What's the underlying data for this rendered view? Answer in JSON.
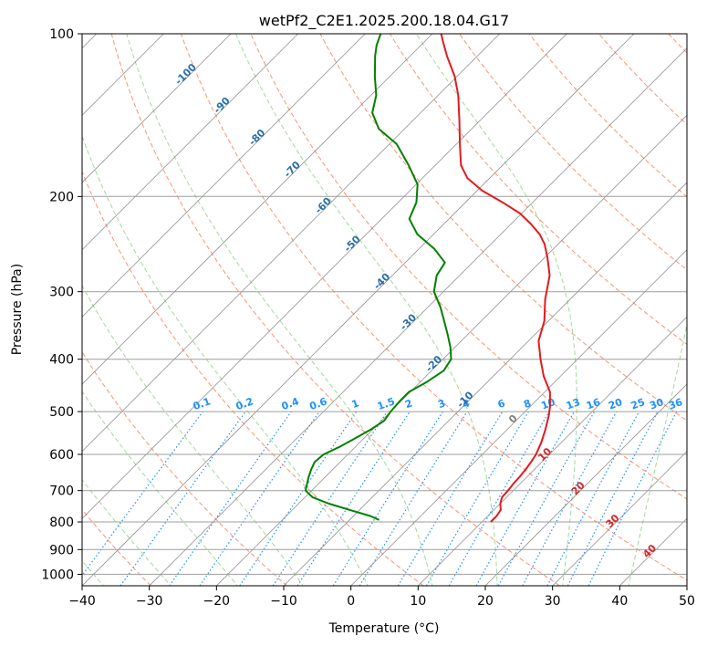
{
  "chart_data": {
    "type": "line",
    "title": "wetPf2_C2E1.2025.200.18.04.G17",
    "xlabel": "Temperature (°C)",
    "ylabel": "Pressure (hPa)",
    "xlim": [
      -40,
      50
    ],
    "ylim": [
      1050,
      100
    ],
    "y_scale": "log",
    "x_ticks": [
      -40,
      -30,
      -20,
      -10,
      0,
      10,
      20,
      30,
      40,
      50
    ],
    "y_ticks": [
      100,
      200,
      300,
      400,
      500,
      600,
      700,
      800,
      900,
      1000
    ],
    "x_tick_labels": [
      "−40",
      "−30",
      "−20",
      "−10",
      "0",
      "10",
      "20",
      "30",
      "40",
      "50"
    ],
    "y_tick_labels": [
      "100",
      "200",
      "300",
      "400",
      "500",
      "600",
      "700",
      "800",
      "900",
      "1000"
    ],
    "grid": true,
    "skew_deg": 45,
    "series": [
      {
        "color": "#e31a1c",
        "points": [
          [
            800,
            11.3
          ],
          [
            780,
            11.3
          ],
          [
            760,
            11.0
          ],
          [
            740,
            10.0
          ],
          [
            720,
            9.3
          ],
          [
            700,
            9.2
          ],
          [
            680,
            9.0
          ],
          [
            660,
            8.9
          ],
          [
            640,
            8.7
          ],
          [
            620,
            8.4
          ],
          [
            600,
            8.0
          ],
          [
            570,
            7.0
          ],
          [
            540,
            5.7
          ],
          [
            510,
            4.2
          ],
          [
            490,
            3.0
          ],
          [
            460,
            0.8
          ],
          [
            430,
            -2.5
          ],
          [
            400,
            -5.5
          ],
          [
            370,
            -8.5
          ],
          [
            340,
            -10.6
          ],
          [
            310,
            -13.7
          ],
          [
            280,
            -16.6
          ],
          [
            260,
            -19.5
          ],
          [
            245,
            -22.0
          ],
          [
            235,
            -24.2
          ],
          [
            225,
            -27.0
          ],
          [
            215,
            -30.2
          ],
          [
            205,
            -34.5
          ],
          [
            195,
            -39.3
          ],
          [
            185,
            -43.3
          ],
          [
            175,
            -46.2
          ],
          [
            160,
            -49.5
          ],
          [
            145,
            -53.0
          ],
          [
            130,
            -57.0
          ],
          [
            120,
            -60.3
          ],
          [
            110,
            -64.5
          ],
          [
            104,
            -67.0
          ],
          [
            100,
            -68.7
          ]
        ]
      },
      {
        "color": "#008000",
        "points": [
          [
            793,
            -5.6
          ],
          [
            780,
            -7.5
          ],
          [
            760,
            -11.5
          ],
          [
            740,
            -15.5
          ],
          [
            720,
            -18.9
          ],
          [
            700,
            -20.9
          ],
          [
            680,
            -21.7
          ],
          [
            660,
            -22.5
          ],
          [
            640,
            -23.2
          ],
          [
            620,
            -23.8
          ],
          [
            600,
            -23.6
          ],
          [
            580,
            -22.3
          ],
          [
            560,
            -21.3
          ],
          [
            540,
            -20.3
          ],
          [
            520,
            -19.6
          ],
          [
            500,
            -20.0
          ],
          [
            480,
            -20.2
          ],
          [
            460,
            -20.2
          ],
          [
            440,
            -19.0
          ],
          [
            420,
            -18.2
          ],
          [
            400,
            -18.8
          ],
          [
            380,
            -20.7
          ],
          [
            360,
            -23.0
          ],
          [
            340,
            -25.5
          ],
          [
            320,
            -28.2
          ],
          [
            300,
            -31.4
          ],
          [
            280,
            -33.4
          ],
          [
            265,
            -34.1
          ],
          [
            250,
            -37.7
          ],
          [
            235,
            -42.4
          ],
          [
            220,
            -45.9
          ],
          [
            205,
            -47.3
          ],
          [
            190,
            -49.8
          ],
          [
            175,
            -54.0
          ],
          [
            160,
            -58.9
          ],
          [
            150,
            -63.8
          ],
          [
            140,
            -67.2
          ],
          [
            130,
            -69.2
          ],
          [
            120,
            -72.2
          ],
          [
            110,
            -75.2
          ],
          [
            105,
            -76.6
          ],
          [
            100,
            -77.7
          ]
        ]
      }
    ],
    "dry_adiabats_K": [
      180,
      200,
      220,
      240,
      260,
      280,
      300,
      320,
      340,
      360,
      380,
      400,
      420,
      440,
      460,
      480,
      500,
      520,
      540
    ],
    "dry_adiabat_labels": [
      {
        "text": "-100",
        "t": -100,
        "p": 120
      },
      {
        "text": "-90",
        "t": -90,
        "p": 137
      },
      {
        "text": "-80",
        "t": -80,
        "p": 157
      },
      {
        "text": "-70",
        "t": -70,
        "p": 180
      },
      {
        "text": "-60",
        "t": -60,
        "p": 210
      },
      {
        "text": "-50",
        "t": -50,
        "p": 247
      },
      {
        "text": "-40",
        "t": -40,
        "p": 290
      },
      {
        "text": "-30",
        "t": -30,
        "p": 345
      },
      {
        "text": "-20",
        "t": -20,
        "p": 412
      },
      {
        "text": "-10",
        "t": -10,
        "p": 480
      }
    ],
    "moist_adiabats_C": [
      -40,
      -30,
      -20,
      -10,
      0,
      10,
      20,
      30,
      40,
      50
    ],
    "moist_adiabat_labels": [
      {
        "text": "0",
        "t": 0,
        "p": 521
      },
      {
        "text": "10",
        "t": 10,
        "p": 606
      },
      {
        "text": "20",
        "t": 20,
        "p": 700
      },
      {
        "text": "30",
        "t": 30,
        "p": 805
      },
      {
        "text": "40",
        "t": 40,
        "p": 915
      }
    ],
    "mixing_ratios_gkg": [
      0.1,
      0.2,
      0.4,
      0.6,
      1,
      1.5,
      2,
      3,
      4,
      6,
      8,
      10,
      13,
      16,
      20,
      25,
      30,
      36
    ],
    "mixing_ratio_labels": [
      "0.1",
      "0.2",
      "0.4",
      "0.6",
      "1",
      "1.5",
      "2",
      "3",
      "4",
      "6",
      "8",
      "10",
      "13",
      "16",
      "20",
      "25",
      "30",
      "36"
    ],
    "colors": {
      "isotherm": "#7f7f7f",
      "isobar": "#9e9e9e",
      "dry_adiabat": "#fc9272",
      "moist_adiabat": "#a1d99b",
      "mixing_ratio": "#1e90ff",
      "dry_label": "#2a6fa8",
      "moist_label": "#d62728",
      "saturation_curve": "#c8a97e"
    }
  }
}
